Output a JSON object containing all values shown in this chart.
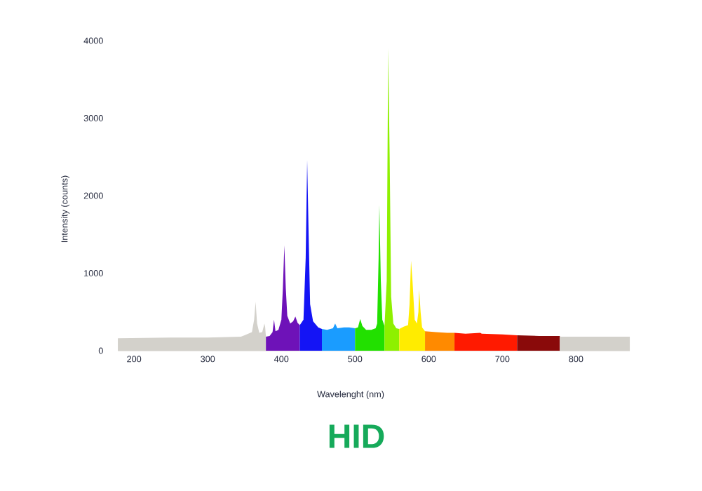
{
  "chart_data": {
    "type": "area",
    "title": "HID",
    "xlabel": "Wavelenght (nm)",
    "ylabel": "Intensity (counts)",
    "xlim": [
      178,
      873
    ],
    "ylim": [
      0,
      4000
    ],
    "xticks": [
      200,
      300,
      400,
      500,
      600,
      700,
      800
    ],
    "yticks": [
      0,
      1000,
      2000,
      3000,
      4000
    ],
    "series": [
      {
        "color": "#d3d1cb",
        "x": [
          178,
          250,
          300,
          345,
          350,
          360,
          363,
          365,
          367,
          370,
          374,
          377,
          378,
          379
        ],
        "values": [
          160,
          170,
          170,
          180,
          200,
          240,
          400,
          630,
          350,
          230,
          240,
          350,
          300,
          180
        ]
      },
      {
        "color": "#6e12b8",
        "x": [
          379,
          384,
          388,
          390,
          392,
          396,
          400,
          402,
          404,
          406,
          408,
          412,
          416,
          419,
          422,
          425
        ],
        "values": [
          180,
          190,
          240,
          400,
          250,
          270,
          400,
          800,
          1360,
          800,
          450,
          350,
          380,
          440,
          360,
          330
        ]
      },
      {
        "color": "#1414f5",
        "x": [
          425,
          430,
          433,
          435,
          437,
          439,
          443,
          450,
          455
        ],
        "values": [
          330,
          400,
          1200,
          2460,
          1500,
          600,
          380,
          300,
          280
        ]
      },
      {
        "color": "#1a9cff",
        "x": [
          455,
          462,
          470,
          473,
          476,
          485,
          492,
          500
        ],
        "values": [
          280,
          270,
          290,
          350,
          290,
          300,
          300,
          290
        ]
      },
      {
        "color": "#22e000",
        "x": [
          500,
          504,
          507,
          510,
          515,
          522,
          528,
          530,
          532,
          533,
          535,
          537,
          540
        ],
        "values": [
          290,
          300,
          410,
          320,
          270,
          270,
          290,
          350,
          1200,
          1880,
          900,
          400,
          320
        ]
      },
      {
        "color": "#8ef000",
        "x": [
          540,
          543,
          545,
          547,
          549,
          552,
          556,
          560
        ],
        "values": [
          320,
          900,
          3900,
          2500,
          700,
          350,
          290,
          280
        ]
      },
      {
        "color": "#ffec00",
        "x": [
          560,
          566,
          572,
          574,
          576,
          578,
          581,
          584,
          586,
          587,
          589,
          591,
          595
        ],
        "values": [
          280,
          310,
          330,
          600,
          1160,
          900,
          400,
          350,
          500,
          790,
          500,
          300,
          250
        ]
      },
      {
        "color": "#ff8a00",
        "x": [
          595,
          610,
          625,
          635
        ],
        "values": [
          250,
          240,
          230,
          230
        ]
      },
      {
        "color": "#ff1a00",
        "x": [
          635,
          650,
          670,
          672,
          700,
          720
        ],
        "values": [
          230,
          220,
          230,
          220,
          210,
          200
        ]
      },
      {
        "color": "#8a0a0a",
        "x": [
          720,
          750,
          778
        ],
        "values": [
          200,
          190,
          190
        ]
      },
      {
        "color": "#d3d1cb",
        "x": [
          778,
          820,
          873
        ],
        "values": [
          180,
          180,
          180
        ]
      }
    ]
  }
}
